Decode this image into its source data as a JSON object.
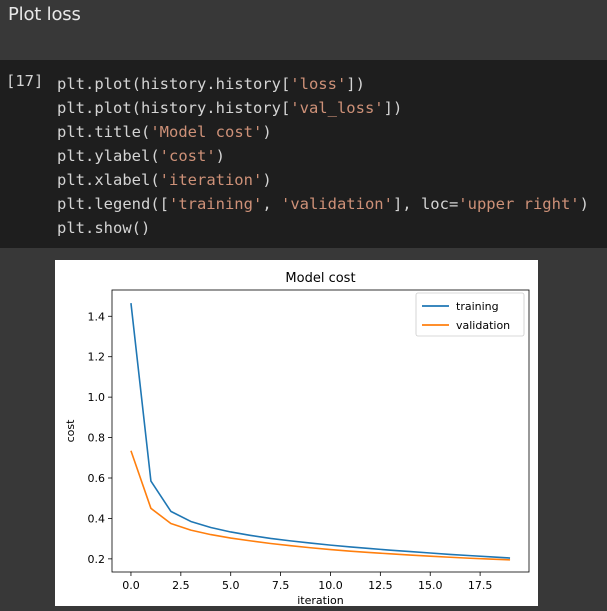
{
  "markdown_cell": {
    "heading": "Plot loss"
  },
  "code_cell": {
    "prompt": "[17]",
    "lines": [
      [
        {
          "t": "plt.plot(history.history["
        },
        {
          "t": "'loss'",
          "s": 1
        },
        {
          "t": "])"
        }
      ],
      [
        {
          "t": "plt.plot(history.history["
        },
        {
          "t": "'val_loss'",
          "s": 1
        },
        {
          "t": "])"
        }
      ],
      [
        {
          "t": "plt.title("
        },
        {
          "t": "'Model cost'",
          "s": 1
        },
        {
          "t": ")"
        }
      ],
      [
        {
          "t": "plt.ylabel("
        },
        {
          "t": "'cost'",
          "s": 1
        },
        {
          "t": ")"
        }
      ],
      [
        {
          "t": "plt.xlabel("
        },
        {
          "t": "'iteration'",
          "s": 1
        },
        {
          "t": ")"
        }
      ],
      [
        {
          "t": "plt.legend(["
        },
        {
          "t": "'training'",
          "s": 1
        },
        {
          "t": ", "
        },
        {
          "t": "'validation'",
          "s": 1
        },
        {
          "t": "], loc="
        },
        {
          "t": "'upper right'",
          "s": 1
        },
        {
          "t": ")"
        }
      ],
      [
        {
          "t": "plt.show()"
        }
      ]
    ]
  },
  "chart_data": {
    "type": "line",
    "title": "Model cost",
    "xlabel": "iteration",
    "ylabel": "cost",
    "xlim": [
      -0.95,
      19.95
    ],
    "ylim": [
      0.135,
      1.53
    ],
    "xticks": [
      0,
      2.5,
      5,
      7.5,
      10,
      12.5,
      15,
      17.5
    ],
    "xtick_labels": [
      "0.0",
      "2.5",
      "5.0",
      "7.5",
      "10.0",
      "12.5",
      "15.0",
      "17.5"
    ],
    "yticks": [
      0.2,
      0.4,
      0.6,
      0.8,
      1.0,
      1.2,
      1.4
    ],
    "ytick_labels": [
      "0.2",
      "0.4",
      "0.6",
      "0.8",
      "1.0",
      "1.2",
      "1.4"
    ],
    "grid": false,
    "legend_position": "upper right",
    "x": [
      0,
      1,
      2,
      3,
      4,
      5,
      6,
      7,
      8,
      9,
      10,
      11,
      12,
      13,
      14,
      15,
      16,
      17,
      18,
      19
    ],
    "series": [
      {
        "name": "training",
        "color": "#1f77b4",
        "values": [
          1.465,
          0.585,
          0.435,
          0.385,
          0.355,
          0.333,
          0.316,
          0.301,
          0.289,
          0.278,
          0.268,
          0.259,
          0.251,
          0.243,
          0.236,
          0.229,
          0.222,
          0.216,
          0.21,
          0.204
        ]
      },
      {
        "name": "validation",
        "color": "#ff7f0e",
        "values": [
          0.735,
          0.45,
          0.375,
          0.342,
          0.32,
          0.303,
          0.289,
          0.276,
          0.265,
          0.255,
          0.246,
          0.238,
          0.231,
          0.225,
          0.219,
          0.213,
          0.208,
          0.203,
          0.199,
          0.195
        ]
      }
    ]
  }
}
